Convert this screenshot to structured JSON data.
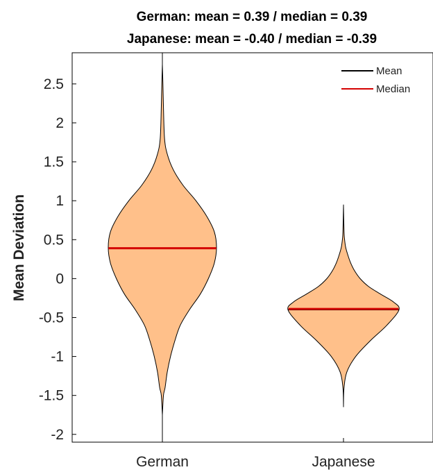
{
  "chart_data": {
    "type": "violin",
    "title_lines": [
      "German: mean = 0.39 /  median = 0.39",
      "Japanese: mean = -0.40 /  median = -0.39"
    ],
    "xlabel": "",
    "ylabel": "Mean Deviation",
    "categories": [
      "German",
      "Japanese"
    ],
    "ylim": [
      -2.1,
      2.9
    ],
    "yticks": [
      -2,
      -1.5,
      -1,
      -0.5,
      0,
      0.5,
      1,
      1.5,
      2,
      2.5
    ],
    "ytick_labels": [
      "-2",
      "-1.5",
      "-1",
      "-0.5",
      "0",
      "0.5",
      "1",
      "1.5",
      "2",
      "2.5"
    ],
    "fill_color": "#ffc08a",
    "outline_color": "#000000",
    "mean_color": "#000000",
    "median_color": "#d40000",
    "legend": {
      "placement": "top-right",
      "entries": [
        {
          "label": "Mean",
          "color": "#000000"
        },
        {
          "label": "Median",
          "color": "#d40000"
        }
      ]
    },
    "series": [
      {
        "category": "German",
        "mean": 0.39,
        "median": 0.39,
        "data_range": [
          -2.1,
          2.9
        ],
        "density_profile": [
          [
            -1.75,
            0.0
          ],
          [
            -1.5,
            0.02
          ],
          [
            -1.4,
            0.05
          ],
          [
            -1.2,
            0.09
          ],
          [
            -1.0,
            0.15
          ],
          [
            -0.8,
            0.23
          ],
          [
            -0.6,
            0.33
          ],
          [
            -0.4,
            0.5
          ],
          [
            -0.2,
            0.7
          ],
          [
            0.0,
            0.85
          ],
          [
            0.2,
            0.96
          ],
          [
            0.4,
            1.0
          ],
          [
            0.6,
            0.96
          ],
          [
            0.8,
            0.82
          ],
          [
            1.0,
            0.62
          ],
          [
            1.2,
            0.38
          ],
          [
            1.4,
            0.2
          ],
          [
            1.6,
            0.09
          ],
          [
            1.8,
            0.04
          ],
          [
            2.2,
            0.02
          ],
          [
            2.5,
            0.01
          ],
          [
            2.75,
            0.0
          ]
        ]
      },
      {
        "category": "Japanese",
        "mean": -0.4,
        "median": -0.39,
        "data_range": [
          -1.65,
          0.95
        ],
        "density_profile": [
          [
            -1.62,
            0.0
          ],
          [
            -1.4,
            0.01
          ],
          [
            -1.2,
            0.06
          ],
          [
            -1.0,
            0.22
          ],
          [
            -0.8,
            0.48
          ],
          [
            -0.6,
            0.78
          ],
          [
            -0.4,
            1.0
          ],
          [
            -0.3,
            0.9
          ],
          [
            -0.2,
            0.67
          ],
          [
            -0.1,
            0.45
          ],
          [
            0.0,
            0.3
          ],
          [
            0.1,
            0.2
          ],
          [
            0.2,
            0.13
          ],
          [
            0.3,
            0.08
          ],
          [
            0.4,
            0.04
          ],
          [
            0.5,
            0.02
          ],
          [
            0.6,
            0.01
          ],
          [
            0.94,
            0.0
          ]
        ]
      }
    ]
  }
}
